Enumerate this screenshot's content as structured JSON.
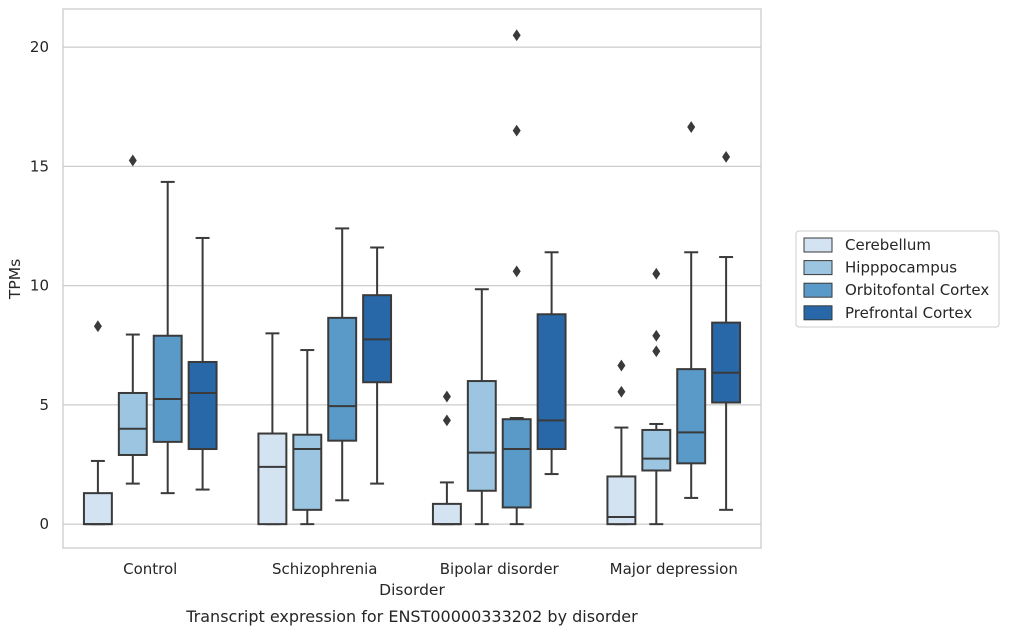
{
  "chart_data": {
    "type": "box",
    "title": "",
    "caption": "Transcript expression for ENST00000333202 by disorder",
    "xlabel": "Disorder",
    "ylabel": "TPMs",
    "ylim": [
      -1,
      21.6
    ],
    "yticks": [
      0,
      5,
      10,
      15,
      20
    ],
    "grid": true,
    "legend_position": "right",
    "categories": [
      "Control",
      "Schizophrenia",
      "Bipolar disorder",
      "Major depression"
    ],
    "series": [
      {
        "name": "Cerebellum",
        "color": "#d4e3f2",
        "boxes": [
          {
            "whislo": 0,
            "q1": 0,
            "med": 0,
            "q3": 1.3,
            "whishi": 2.65,
            "fliers": [
              8.3
            ]
          },
          {
            "whislo": 0,
            "q1": 0,
            "med": 2.4,
            "q3": 3.8,
            "whishi": 8.0,
            "fliers": []
          },
          {
            "whislo": 0,
            "q1": 0,
            "med": 0,
            "q3": 0.85,
            "whishi": 1.75,
            "fliers": [
              4.35,
              5.35
            ]
          },
          {
            "whislo": 0,
            "q1": 0,
            "med": 0.3,
            "q3": 2.0,
            "whishi": 4.05,
            "fliers": [
              5.55,
              6.65
            ]
          }
        ]
      },
      {
        "name": "Hipppocampus",
        "color": "#9bc5e0",
        "boxes": [
          {
            "whislo": 1.7,
            "q1": 2.9,
            "med": 4.0,
            "q3": 5.5,
            "whishi": 7.95,
            "fliers": [
              15.25
            ]
          },
          {
            "whislo": 0,
            "q1": 0.6,
            "med": 3.15,
            "q3": 3.75,
            "whishi": 7.3,
            "fliers": []
          },
          {
            "whislo": 0,
            "q1": 1.4,
            "med": 3.0,
            "q3": 6.0,
            "whishi": 9.85,
            "fliers": []
          },
          {
            "whislo": 0,
            "q1": 2.25,
            "med": 2.75,
            "q3": 3.95,
            "whishi": 4.2,
            "fliers": [
              7.25,
              7.9,
              10.5
            ]
          }
        ]
      },
      {
        "name": "Orbitofontal Cortex",
        "color": "#5a9ac8",
        "boxes": [
          {
            "whislo": 1.3,
            "q1": 3.45,
            "med": 5.25,
            "q3": 7.9,
            "whishi": 14.35,
            "fliers": []
          },
          {
            "whislo": 1.0,
            "q1": 3.5,
            "med": 4.95,
            "q3": 8.65,
            "whishi": 12.4,
            "fliers": []
          },
          {
            "whislo": 0,
            "q1": 0.7,
            "med": 3.15,
            "q3": 4.4,
            "whishi": 4.45,
            "fliers": [
              10.6,
              16.5,
              20.5
            ]
          },
          {
            "whislo": 1.1,
            "q1": 2.55,
            "med": 3.85,
            "q3": 6.5,
            "whishi": 11.4,
            "fliers": [
              16.65
            ]
          }
        ]
      },
      {
        "name": "Prefrontal Cortex",
        "color": "#2868a8",
        "boxes": [
          {
            "whislo": 1.45,
            "q1": 3.15,
            "med": 5.5,
            "q3": 6.8,
            "whishi": 12.0,
            "fliers": []
          },
          {
            "whislo": 1.7,
            "q1": 5.95,
            "med": 7.75,
            "q3": 9.6,
            "whishi": 11.6,
            "fliers": []
          },
          {
            "whislo": 2.1,
            "q1": 3.15,
            "med": 4.35,
            "q3": 8.8,
            "whishi": 11.4,
            "fliers": []
          },
          {
            "whislo": 0.6,
            "q1": 5.1,
            "med": 6.35,
            "q3": 8.45,
            "whishi": 11.2,
            "fliers": [
              15.4
            ]
          }
        ]
      }
    ]
  }
}
